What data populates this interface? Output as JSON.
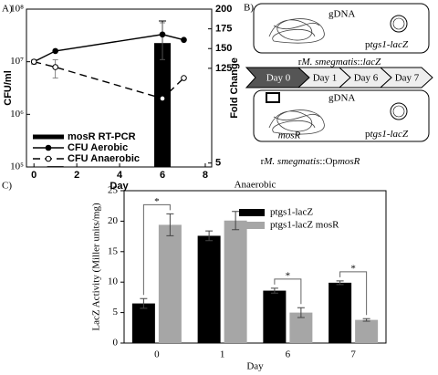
{
  "chart_data": [
    {
      "type": "combo",
      "label": "A)",
      "xlabel": "Day",
      "ylabel": "CFU/ml",
      "y2label": "Fold Change",
      "x": [
        0,
        1,
        6,
        7
      ],
      "xlim": [
        -0.35,
        8.3
      ],
      "xticks": [
        0,
        2,
        4,
        6,
        8
      ],
      "ylog": true,
      "ylim": [
        100000,
        100000000
      ],
      "yticks": [
        {
          "value": 100000,
          "label": "10⁵"
        },
        {
          "value": 1000000,
          "label": "10⁶"
        },
        {
          "value": 10000000,
          "label": "10⁷"
        },
        {
          "value": 100000000,
          "label": "10⁸"
        }
      ],
      "y2lim": [
        0,
        200
      ],
      "y2ticks": [
        5,
        125,
        150,
        175,
        200
      ],
      "series": [
        {
          "name": "mosR RT-PCR",
          "type": "bar",
          "axis": "y2",
          "color": "#000000",
          "values": [
            null,
            1,
            157,
            null
          ],
          "errors": [
            null,
            null,
            28,
            null
          ]
        },
        {
          "name": "CFU Aerobic",
          "type": "line",
          "marker": "filled",
          "dash": false,
          "color": "#000000",
          "values": [
            10000000,
            16000000,
            33000000,
            26000000
          ],
          "errors": [
            null,
            null,
            22000000,
            null
          ]
        },
        {
          "name": "CFU Anaerobic",
          "type": "line",
          "marker": "open",
          "dash": true,
          "color": "#000000",
          "values": [
            10000000,
            7900000,
            2000000,
            4900000
          ],
          "errors": [
            1000000,
            3000000,
            null,
            null
          ]
        }
      ]
    },
    {
      "type": "bar",
      "label": "C)",
      "title": "Anaerobic",
      "xlabel": "Day",
      "ylabel": "LacZ Activity (Miller units/mg)",
      "categories": [
        "0",
        "1",
        "6",
        "7"
      ],
      "ylim": [
        0,
        25
      ],
      "yticks": [
        0,
        5,
        10,
        15,
        20,
        25
      ],
      "series": [
        {
          "name": "ptgs1-lacZ",
          "color": "#000000",
          "values": [
            6.5,
            17.6,
            8.6,
            9.9
          ],
          "errors": [
            0.8,
            0.8,
            0.4,
            0.3
          ]
        },
        {
          "name": "ptgs1-lacZ mosR",
          "color": "#a6a6a6",
          "values": [
            19.4,
            20.1,
            5.0,
            3.8
          ],
          "errors": [
            1.8,
            1.5,
            0.8,
            0.2
          ]
        }
      ],
      "significance": [
        {
          "category": "0",
          "label": "*"
        },
        {
          "category": "6",
          "label": "*"
        },
        {
          "category": "7",
          "label": "*"
        }
      ]
    }
  ],
  "diagram": {
    "label": "B)",
    "top_construct": {
      "chromosome": "gDNA",
      "plasmid": [
        "p",
        "tgs1-lacZ"
      ],
      "strain": [
        "r",
        "M. smegmatis",
        "::",
        "lacZ"
      ]
    },
    "timeline": [
      "Day 0",
      "Day 1",
      "Day 6",
      "Day 7"
    ],
    "bottom_construct": {
      "chromosome": "gDNA",
      "insert": "mosR",
      "plasmid": [
        "p",
        "tgs1-lacZ"
      ],
      "strain": [
        "r",
        "M. smegmatis",
        "::Op",
        "mosR"
      ]
    }
  }
}
